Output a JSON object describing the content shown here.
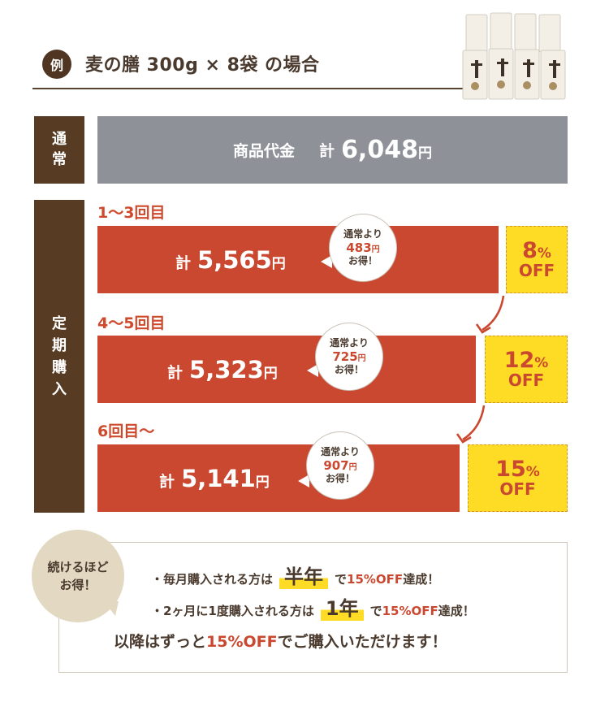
{
  "header": {
    "badge": "例",
    "title": "麦の膳 300g × 8袋  の場合"
  },
  "normal": {
    "label_lines": [
      "通",
      "常"
    ],
    "item_label": "商品代金",
    "kei": "計",
    "price": "6,048",
    "yen": "円"
  },
  "subscription": {
    "label_lines": [
      "定",
      "期",
      "購",
      "入"
    ],
    "tiers": [
      {
        "label": "1〜3回目",
        "kei": "計",
        "price": "5,565",
        "yen": "円",
        "bubble": {
          "line1": "通常より",
          "amount": "483",
          "yen": "円",
          "line3": "お得！"
        },
        "off_pct": "8",
        "pct_sign": "%",
        "off_word": "OFF"
      },
      {
        "label": "4〜5回目",
        "kei": "計",
        "price": "5,323",
        "yen": "円",
        "bubble": {
          "line1": "通常より",
          "amount": "725",
          "yen": "円",
          "line3": "お得！"
        },
        "off_pct": "12",
        "pct_sign": "%",
        "off_word": "OFF"
      },
      {
        "label": "6回目〜",
        "kei": "計",
        "price": "5,141",
        "yen": "円",
        "bubble": {
          "line1": "通常より",
          "amount": "907",
          "yen": "円",
          "line3": "お得！"
        },
        "off_pct": "15",
        "pct_sign": "%",
        "off_word": "OFF"
      }
    ]
  },
  "info": {
    "badge_lines": [
      "続けるほど",
      "お得！"
    ],
    "bullet1": {
      "pre": "・毎月購入される方は",
      "highlight": "半年",
      "post_a": "で",
      "post_red": "15%OFF",
      "post_b": "達成！"
    },
    "bullet2": {
      "pre": "・2ヶ月に1度購入される方は",
      "highlight": "1年",
      "post_a": "で",
      "post_red": "15%OFF",
      "post_b": "達成！"
    },
    "closing": {
      "pre": "以降はずっと",
      "red": "15%OFF",
      "post": "でご購入いただけます！"
    }
  },
  "colors": {
    "brown": "#573b22",
    "red": "#c9482f",
    "gray": "#8e9198",
    "yellow": "#fedc26",
    "beige": "#e3d8c2"
  }
}
